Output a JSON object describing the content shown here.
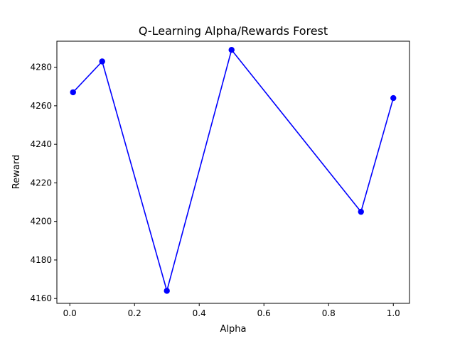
{
  "chart_data": {
    "type": "line",
    "title": "Q-Learning Alpha/Rewards Forest",
    "xlabel": "Alpha",
    "ylabel": "Reward",
    "xlim": [
      -0.04,
      1.05
    ],
    "ylim": [
      4157.5,
      4293.5
    ],
    "xticks": [
      0.0,
      0.2,
      0.4,
      0.6,
      0.8,
      1.0
    ],
    "xtick_labels": [
      "0.0",
      "0.2",
      "0.4",
      "0.6",
      "0.8",
      "1.0"
    ],
    "yticks": [
      4160,
      4180,
      4200,
      4220,
      4240,
      4260,
      4280
    ],
    "ytick_labels": [
      "4160",
      "4180",
      "4200",
      "4220",
      "4240",
      "4260",
      "4280"
    ],
    "grid": false,
    "series": [
      {
        "color": "#0000ff",
        "marker": "circle",
        "x": [
          0.01,
          0.1,
          0.3,
          0.5,
          0.9,
          1.0
        ],
        "y": [
          4267,
          4283,
          4164,
          4289,
          4205,
          4264
        ]
      }
    ]
  }
}
